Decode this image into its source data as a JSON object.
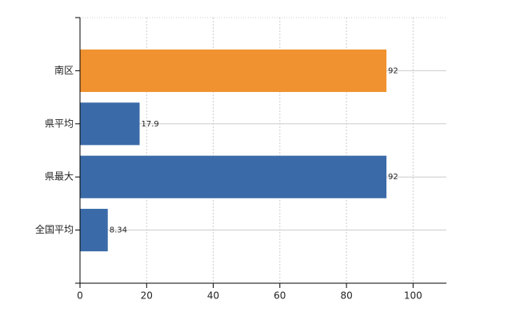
{
  "chart_data": {
    "type": "bar",
    "orientation": "horizontal",
    "categories": [
      "南区",
      "県平均",
      "県最大",
      "全国平均"
    ],
    "values": [
      92,
      17.9,
      92,
      8.34
    ],
    "colors": [
      "#f0922f",
      "#3a6aa8",
      "#3a6aa8",
      "#3a6aa8"
    ],
    "xlim": [
      0,
      110
    ],
    "xticks": [
      0,
      20,
      40,
      60,
      80,
      100
    ],
    "grid": true
  }
}
